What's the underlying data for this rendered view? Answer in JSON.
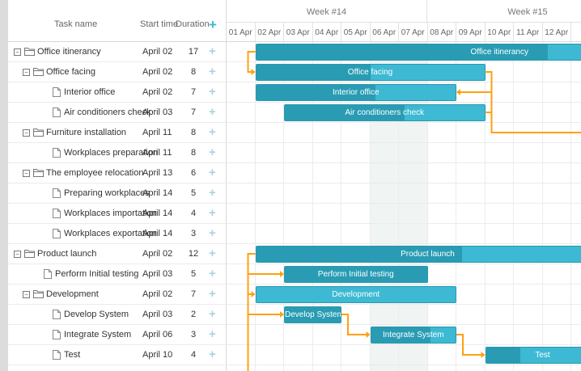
{
  "header": {
    "task_name": "Task name",
    "start_time": "Start time",
    "duration": "Duration",
    "add": "+"
  },
  "weeks": [
    "Week #14",
    "Week #15"
  ],
  "days": [
    "01 Apr",
    "02 Apr",
    "03 Apr",
    "04 Apr",
    "05 Apr",
    "06 Apr",
    "07 Apr",
    "08 Apr",
    "09 Apr",
    "10 Apr",
    "11 Apr",
    "12 Apr"
  ],
  "tasks": [
    {
      "name": "Office itinerancy",
      "start": "April 02",
      "duration": "17",
      "level": 0,
      "type": "folder",
      "open": true
    },
    {
      "name": "Office facing",
      "start": "April 02",
      "duration": "8",
      "level": 1,
      "type": "folder",
      "open": true
    },
    {
      "name": "Interior office",
      "start": "April 02",
      "duration": "7",
      "level": 2,
      "type": "file"
    },
    {
      "name": "Air conditioners check",
      "start": "April 03",
      "duration": "7",
      "level": 2,
      "type": "file"
    },
    {
      "name": "Furniture installation",
      "start": "April 11",
      "duration": "8",
      "level": 1,
      "type": "folder",
      "open": true
    },
    {
      "name": "Workplaces preparation",
      "start": "April 11",
      "duration": "8",
      "level": 2,
      "type": "file"
    },
    {
      "name": "The employee relocation",
      "start": "April 13",
      "duration": "6",
      "level": 1,
      "type": "folder",
      "open": true
    },
    {
      "name": "Preparing workplaces",
      "start": "April 14",
      "duration": "5",
      "level": 2,
      "type": "file"
    },
    {
      "name": "Workplaces importation",
      "start": "April 14",
      "duration": "4",
      "level": 2,
      "type": "file"
    },
    {
      "name": "Workplaces exportation",
      "start": "April 14",
      "duration": "3",
      "level": 2,
      "type": "file"
    },
    {
      "name": "Product launch",
      "start": "April 02",
      "duration": "12",
      "level": 0,
      "type": "folder",
      "open": true
    },
    {
      "name": "Perform Initial testing",
      "start": "April 03",
      "duration": "5",
      "level": 1,
      "type": "file"
    },
    {
      "name": "Development",
      "start": "April 02",
      "duration": "7",
      "level": 1,
      "type": "folder",
      "open": true
    },
    {
      "name": "Develop System",
      "start": "April 03",
      "duration": "2",
      "level": 2,
      "type": "file"
    },
    {
      "name": "Integrate System",
      "start": "April 06",
      "duration": "3",
      "level": 2,
      "type": "file"
    },
    {
      "name": "Test",
      "start": "April 10",
      "duration": "4",
      "level": 2,
      "type": "file"
    }
  ],
  "bars": [
    {
      "row": 0,
      "start_day": 1,
      "length": 17,
      "progress": 0.6,
      "label": "Office itinerancy"
    },
    {
      "row": 1,
      "start_day": 1,
      "length": 8,
      "progress": 0.5,
      "label": "Office facing"
    },
    {
      "row": 2,
      "start_day": 1,
      "length": 7,
      "progress": 0.6,
      "label": "Interior office"
    },
    {
      "row": 3,
      "start_day": 2,
      "length": 7,
      "progress": 0.6,
      "label": "Air conditioners check"
    },
    {
      "row": 10,
      "start_day": 1,
      "length": 12,
      "progress": 0.6,
      "label": "Product launch"
    },
    {
      "row": 11,
      "start_day": 2,
      "length": 5,
      "progress": 1.0,
      "label": "Perform Initial testing"
    },
    {
      "row": 12,
      "start_day": 1,
      "length": 7,
      "progress": 0.0,
      "label": "Development"
    },
    {
      "row": 13,
      "start_day": 2,
      "length": 2,
      "progress": 1.0,
      "label": "Develop System"
    },
    {
      "row": 14,
      "start_day": 5,
      "length": 3,
      "progress": 0.7,
      "label": "Integrate System"
    },
    {
      "row": 15,
      "start_day": 9,
      "length": 4,
      "progress": 0.3,
      "label": "Test"
    }
  ],
  "colors": {
    "bar": "#3db9d3",
    "bar_progress": "#299cb4",
    "link": "#ffa011",
    "weekend": "#f0f4f3"
  },
  "weekend_days": [
    5,
    6
  ]
}
